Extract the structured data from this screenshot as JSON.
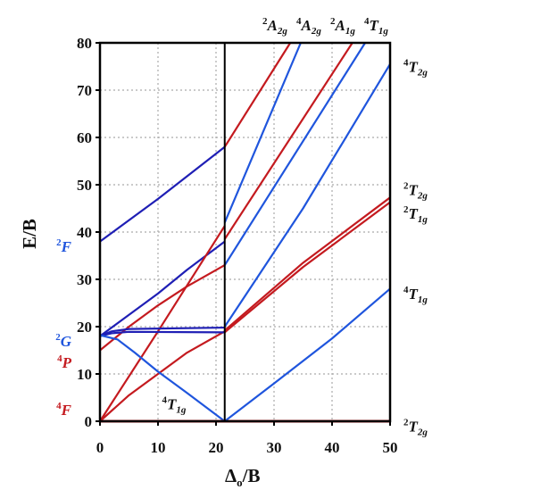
{
  "chart_data": {
    "type": "line",
    "xlabel": {
      "main": "Δ",
      "sub": "o",
      "rest": "/B"
    },
    "ylabel": "E/B",
    "xlim": [
      0,
      50
    ],
    "ylim": [
      0,
      80
    ],
    "xticks": [
      "0",
      "10",
      "20",
      "30",
      "40",
      "50"
    ],
    "yticks": [
      "0",
      "10",
      "20",
      "30",
      "40",
      "50",
      "60",
      "70",
      "80"
    ],
    "grid": true,
    "discontinuity_x": 21.5,
    "colors": {
      "red": "#c41a1f",
      "blue": "#1f55dd",
      "darkblue": "#1f1fb5",
      "frame": "#000000"
    },
    "series": [
      {
        "color": "darkblue",
        "points": [
          [
            0,
            38
          ],
          [
            10,
            47
          ],
          [
            21.5,
            58
          ]
        ]
      },
      {
        "color": "darkblue",
        "points": [
          [
            0,
            18
          ],
          [
            5,
            22.5
          ],
          [
            10,
            27
          ],
          [
            15,
            32
          ],
          [
            21.5,
            38
          ]
        ]
      },
      {
        "color": "red",
        "points": [
          [
            0,
            15
          ],
          [
            5,
            20
          ],
          [
            10,
            24.5
          ],
          [
            15,
            28.5
          ],
          [
            21.5,
            33
          ]
        ]
      },
      {
        "color": "red",
        "points": [
          [
            0,
            0
          ],
          [
            10,
            19
          ],
          [
            21.5,
            41.3
          ]
        ]
      },
      {
        "color": "red",
        "points": [
          [
            0,
            0
          ],
          [
            5,
            5.5
          ],
          [
            10,
            10
          ],
          [
            15,
            14.5
          ],
          [
            21.5,
            19
          ]
        ]
      },
      {
        "color": "darkblue",
        "points": [
          [
            0,
            18
          ],
          [
            2,
            19
          ],
          [
            5,
            19.5
          ],
          [
            21.5,
            19.8
          ]
        ]
      },
      {
        "color": "darkblue",
        "points": [
          [
            0,
            18
          ],
          [
            2,
            18.6
          ],
          [
            5,
            18.9
          ],
          [
            21.5,
            18.8
          ]
        ]
      },
      {
        "color": "blue",
        "points": [
          [
            0,
            18.2
          ],
          [
            3,
            17.3
          ],
          [
            6,
            14.5
          ],
          [
            10,
            10.5
          ],
          [
            15,
            6
          ],
          [
            21.5,
            0
          ]
        ]
      },
      {
        "color": "red",
        "points": [
          [
            0,
            0
          ],
          [
            50,
            0
          ]
        ]
      },
      {
        "color": "red",
        "points": [
          [
            21.5,
            58
          ],
          [
            32.8,
            80
          ]
        ]
      },
      {
        "color": "blue",
        "points": [
          [
            21.5,
            42
          ],
          [
            34.6,
            80
          ]
        ]
      },
      {
        "color": "red",
        "points": [
          [
            21.5,
            38.5
          ],
          [
            43.5,
            80
          ]
        ]
      },
      {
        "color": "blue",
        "points": [
          [
            21.5,
            33
          ],
          [
            45.7,
            80
          ]
        ]
      },
      {
        "color": "blue",
        "points": [
          [
            21.5,
            20
          ],
          [
            35,
            45
          ],
          [
            50,
            75.5
          ]
        ]
      },
      {
        "color": "red",
        "points": [
          [
            21.5,
            19.2
          ],
          [
            35,
            33.5
          ],
          [
            50,
            47.3
          ]
        ]
      },
      {
        "color": "red",
        "points": [
          [
            21.5,
            18.8
          ],
          [
            35,
            32.6
          ],
          [
            50,
            46.3
          ]
        ]
      },
      {
        "color": "blue",
        "points": [
          [
            21.5,
            0
          ],
          [
            30,
            8
          ],
          [
            40,
            17.5
          ],
          [
            50,
            28
          ]
        ]
      }
    ],
    "left_terms": [
      {
        "mult": "2",
        "sym": "F",
        "sub": "",
        "color": "blue",
        "y": 37
      },
      {
        "mult": "2",
        "sym": "G",
        "sub": "",
        "color": "blue",
        "y": 17
      },
      {
        "mult": "4",
        "sym": "P",
        "sub": "",
        "color": "red",
        "y": 12.5
      },
      {
        "mult": "4",
        "sym": "F",
        "sub": "",
        "color": "red",
        "y": 2.5
      }
    ],
    "right_terms": [
      {
        "mult": "4",
        "sym": "T",
        "sub": "2g",
        "y": 75
      },
      {
        "mult": "2",
        "sym": "T",
        "sub": "2g",
        "y": 49
      },
      {
        "mult": "2",
        "sym": "T",
        "sub": "1g",
        "y": 44
      },
      {
        "mult": "4",
        "sym": "T",
        "sub": "1g",
        "y": 27
      },
      {
        "mult": "2",
        "sym": "T",
        "sub": "2g",
        "y": -1
      }
    ],
    "top_terms": [
      {
        "mult": "2",
        "sym": "A",
        "sub": "2g"
      },
      {
        "mult": "4",
        "sym": "A",
        "sub": "2g"
      },
      {
        "mult": "2",
        "sym": "A",
        "sub": "1g"
      },
      {
        "mult": "4",
        "sym": "T",
        "sub": "1g"
      }
    ],
    "inner_term": {
      "mult": "4",
      "sym": "T",
      "sub": "1g",
      "x": 11,
      "y": 2
    }
  }
}
